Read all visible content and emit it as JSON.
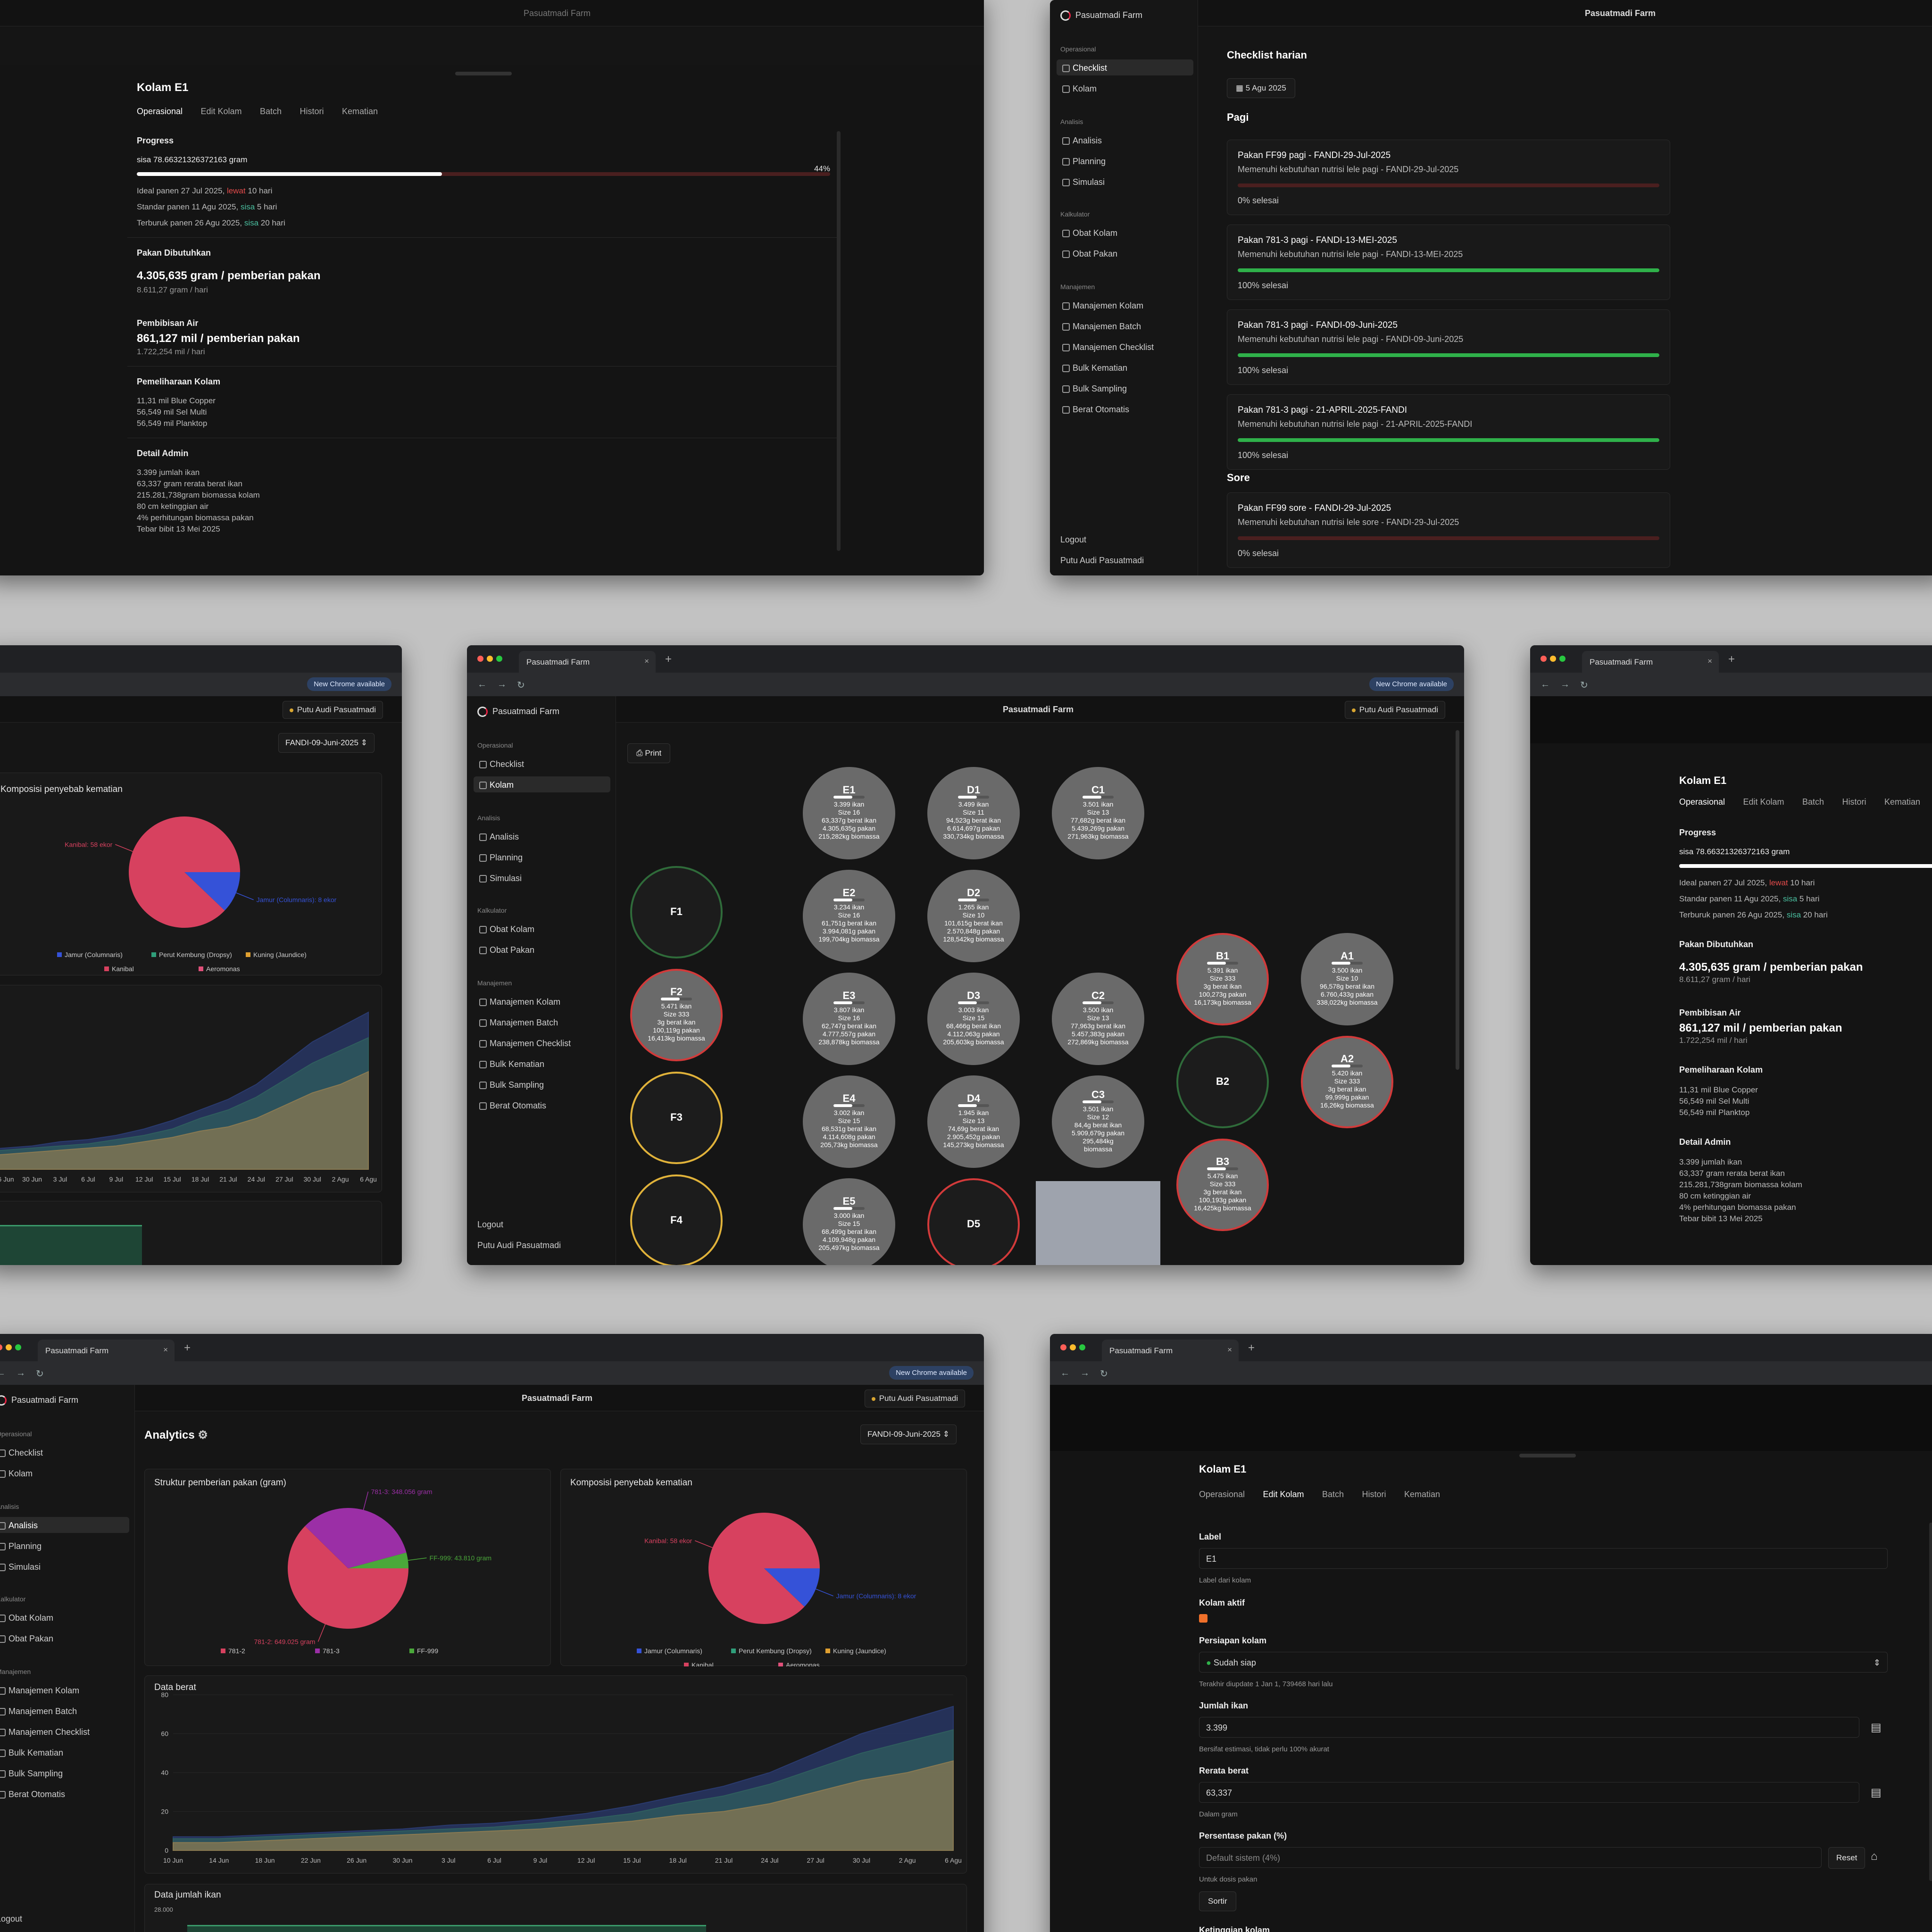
{
  "app": {
    "name": "Pasuatmadi Farm",
    "tab_title": "Pasuatmadi Farm",
    "user": "Putu Audi Pasuatmadi",
    "chrome_available": "New Chrome available"
  },
  "sidebar": {
    "groups": {
      "operasional": "Operasional",
      "analisis": "Analisis",
      "kalkulator": "Kalkulator",
      "manajemen": "Manajemen"
    },
    "items": {
      "checklist": "Checklist",
      "kolam": "Kolam",
      "analisis": "Analisis",
      "planning": "Planning",
      "simulasi": "Simulasi",
      "obat_kolam": "Obat Kolam",
      "obat_pakan": "Obat Pakan",
      "m_kolam": "Manajemen Kolam",
      "m_batch": "Manajemen Batch",
      "m_checklist": "Manajemen Checklist",
      "bulk_kematian": "Bulk Kematian",
      "bulk_sampling": "Bulk Sampling",
      "berat_otomatis": "Berat Otomatis"
    },
    "logout": "Logout",
    "user": "Putu Audi Pasuatmadi"
  },
  "pond_detail": {
    "title": "Kolam E1",
    "tabs": [
      "Operasional",
      "Edit Kolam",
      "Batch",
      "Histori",
      "Kematian"
    ],
    "progress": {
      "title": "Progress",
      "sisa": "sisa 78.66321326372163 gram",
      "percent": "44%",
      "value": 0.44,
      "ideal": "Ideal panen 27 Jul 2025,",
      "ideal_flag": "lewat",
      "ideal_days": "10 hari",
      "standar": "Standar panen 11 Agu 2025,",
      "standar_flag": "sisa",
      "standar_days": "5 hari",
      "terburuk": "Terburuk panen 26 Agu 2025,",
      "terburuk_flag": "sisa",
      "terburuk_days": "20 hari"
    },
    "pakan": {
      "title": "Pakan Dibutuhkan",
      "main": "4.305,635 gram / pemberian pakan",
      "sub": "8.611,27 gram / hari"
    },
    "air": {
      "title": "Pembibisan Air",
      "main": "861,127 mil / pemberian pakan",
      "sub": "1.722,254 mil / hari"
    },
    "pemeliharaan": {
      "title": "Pemeliharaan Kolam",
      "lines": [
        "11,31 mil Blue Copper",
        "56,549 mil Sel Multi",
        "56,549 mil Planktop"
      ]
    },
    "admin": {
      "title": "Detail Admin",
      "lines": [
        "3.399 jumlah ikan",
        "63,337 gram rerata berat ikan",
        "215.281,738gram biomassa kolam",
        "80 cm ketinggian air",
        "4% perhitungan biomassa pakan",
        "Tebar bibit 13 Mei 2025"
      ]
    }
  },
  "checklist": {
    "title": "Checklist harian",
    "date": "5 Agu 2025",
    "pagi": "Pagi",
    "sore": "Sore",
    "items": [
      {
        "title": "Pakan FF99 pagi - FANDI-29-Jul-2025",
        "desc": "Memenuhi kebutuhan nutrisi lele pagi - FANDI-29-Jul-2025",
        "status": "0% selesai",
        "value": 0
      },
      {
        "title": "Pakan 781-3 pagi - FANDI-13-MEI-2025",
        "desc": "Memenuhi kebutuhan nutrisi lele pagi - FANDI-13-MEI-2025",
        "status": "100% selesai",
        "value": 1
      },
      {
        "title": "Pakan 781-3 pagi - FANDI-09-Juni-2025",
        "desc": "Memenuhi kebutuhan nutrisi lele pagi - FANDI-09-Juni-2025",
        "status": "100% selesai",
        "value": 1
      },
      {
        "title": "Pakan 781-3 pagi - 21-APRIL-2025-FANDI",
        "desc": "Memenuhi kebutuhan nutrisi lele pagi - 21-APRIL-2025-FANDI",
        "status": "100% selesai",
        "value": 1
      }
    ],
    "sore_items": [
      {
        "title": "Pakan FF99 sore - FANDI-29-Jul-2025",
        "desc": "Memenuhi kebutuhan nutrisi lele sore - FANDI-29-Jul-2025",
        "status": "0% selesai",
        "value": 0
      }
    ]
  },
  "map": {
    "print": "Print",
    "ponds": [
      {
        "name": "E1",
        "lines": [
          "3.399 ikan",
          "Size 16",
          "63,337g berat ikan",
          "4.305,635g pakan",
          "215,282kg biomassa"
        ]
      },
      {
        "name": "D1",
        "lines": [
          "3.499 ikan",
          "Size 11",
          "94,523g berat ikan",
          "6.614,697g pakan",
          "330,734kg biomassa"
        ]
      },
      {
        "name": "C1",
        "lines": [
          "3.501 ikan",
          "Size 13",
          "77,682g berat ikan",
          "5.439,269g pakan",
          "271,963kg biomassa"
        ]
      },
      {
        "name": "F1",
        "lines": []
      },
      {
        "name": "E2",
        "lines": [
          "3.234 ikan",
          "Size 16",
          "61,751g berat ikan",
          "3.994,081g pakan",
          "199,704kg biomassa"
        ]
      },
      {
        "name": "D2",
        "lines": [
          "1.265 ikan",
          "Size 10",
          "101,615g berat ikan",
          "2.570,848g pakan",
          "128,542kg biomassa"
        ]
      },
      {
        "name": "B1",
        "lines": [
          "5.391 ikan",
          "Size 333",
          "3g berat ikan",
          "100,273g pakan",
          "16,173kg biomassa"
        ]
      },
      {
        "name": "A1",
        "lines": [
          "3.500 ikan",
          "Size 10",
          "96,578g berat ikan",
          "6.760,433g pakan",
          "338,022kg biomassa"
        ]
      },
      {
        "name": "F2",
        "lines": [
          "5.471 ikan",
          "Size 333",
          "3g berat ikan",
          "100,119g pakan",
          "16,413kg biomassa"
        ]
      },
      {
        "name": "E3",
        "lines": [
          "3.807 ikan",
          "Size 16",
          "62,747g berat ikan",
          "4.777,557g pakan",
          "238,878kg biomassa"
        ]
      },
      {
        "name": "D3",
        "lines": [
          "3.003 ikan",
          "Size 15",
          "68,466g berat ikan",
          "4.112,063g pakan",
          "205,603kg biomassa"
        ]
      },
      {
        "name": "C2",
        "lines": [
          "3.500 ikan",
          "Size 13",
          "77,963g berat ikan",
          "5.457,383g pakan",
          "272,869kg biomassa"
        ]
      },
      {
        "name": "B2",
        "lines": []
      },
      {
        "name": "A2",
        "lines": [
          "5.420 ikan",
          "Size 333",
          "3g berat ikan",
          "99,999g pakan",
          "16,26kg biomassa"
        ]
      },
      {
        "name": "F3",
        "lines": []
      },
      {
        "name": "E4",
        "lines": [
          "3.002 ikan",
          "Size 15",
          "68,531g berat ikan",
          "4.114,608g pakan",
          "205,73kg biomassa"
        ]
      },
      {
        "name": "D4",
        "lines": [
          "1.945 ikan",
          "Size 13",
          "74,69g berat ikan",
          "2.905,452g pakan",
          "145,273kg biomassa"
        ]
      },
      {
        "name": "C3",
        "lines": [
          "3.501 ikan",
          "Size 12",
          "84,4g berat ikan",
          "5.909,679g pakan",
          "295,484kg",
          "biomassa"
        ]
      },
      {
        "name": "B3",
        "lines": [
          "5.475 ikan",
          "Size 333",
          "3g berat ikan",
          "100,193g pakan",
          "16,425kg biomassa"
        ]
      },
      {
        "name": "F4",
        "lines": []
      },
      {
        "name": "E5",
        "lines": [
          "3.000 ikan",
          "Size 15",
          "68,499g berat ikan",
          "4.109,948g pakan",
          "205,497kg biomassa"
        ]
      },
      {
        "name": "D5",
        "lines": []
      }
    ]
  },
  "analytics": {
    "title": "Analytics",
    "batch": "FANDI-09-Juni-2025",
    "feed_title": "Struktur pemberian pakan (gram)",
    "death_title": "Komposisi penyebab kematian",
    "weight_title": "Data berat",
    "count_title": "Data jumlah ikan",
    "count_tick": "28.000"
  },
  "edit": {
    "label": "Label",
    "label_value": "E1",
    "label_hint": "Label dari kolam",
    "aktif": "Kolam aktif",
    "persiapan": "Persiapan kolam",
    "persiapan_value": "Sudah siap",
    "persiapan_hint": "Terakhir diupdate 1 Jan 1, 739468 hari lalu",
    "jumlah": "Jumlah ikan",
    "jumlah_value": "3.399",
    "jumlah_hint": "Bersifat estimasi, tidak perlu 100% akurat",
    "rerata": "Rerata berat",
    "rerata_value": "63,337",
    "rerata_hint": "Dalam gram",
    "persen": "Persentase pakan (%)",
    "persen_placeholder": "Default sistem (4%)",
    "persen_hint": "Untuk dosis pakan",
    "reset": "Reset",
    "sortir": "Sortir",
    "ketinggian": "Ketinggian kolam"
  },
  "chart_data": [
    {
      "type": "pie",
      "title": "Struktur pemberian pakan (gram)",
      "slices": [
        {
          "name": "781-2",
          "label": "781-2: 649.025 gram",
          "value": 649.025,
          "color": "#d7415f"
        },
        {
          "name": "781-3",
          "label": "781-3: 348.056 gram",
          "value": 348.056,
          "color": "#9b2fa6"
        },
        {
          "name": "FF-999",
          "label": "FF-999: 43.810 gram",
          "value": 43.81,
          "color": "#4aa83a"
        }
      ]
    },
    {
      "type": "pie",
      "title": "Komposisi penyebab kematian",
      "slices": [
        {
          "name": "Jamur (Columnaris)",
          "label": "Jamur (Columnaris): 8 ekor",
          "value": 8,
          "color": "#3552d8"
        },
        {
          "name": "Perut Kembung (Dropsy)",
          "value": 0,
          "color": "#2f9e7a"
        },
        {
          "name": "Kuning (Jaundice)",
          "value": 0,
          "color": "#e0a030"
        },
        {
          "name": "Kanibal",
          "label": "Kanibal: 58 ekor",
          "value": 58,
          "color": "#d7415f"
        },
        {
          "name": "Aeromonas",
          "value": 0,
          "color": "#e0507a"
        }
      ]
    },
    {
      "type": "area",
      "title": "Data berat",
      "y_ticks": [
        0,
        20,
        40,
        60,
        80
      ],
      "x_ticks": [
        "10 Jun",
        "14 Jun",
        "18 Jun",
        "22 Jun",
        "26 Jun",
        "30 Jun",
        "3 Jul",
        "6 Jul",
        "9 Jul",
        "12 Jul",
        "15 Jul",
        "18 Jul",
        "21 Jul",
        "24 Jul",
        "27 Jul",
        "30 Jul",
        "2 Agu",
        "6 Agu"
      ],
      "ylim": [
        0,
        80
      ],
      "series": [
        {
          "values": [
            4,
            4,
            5,
            6,
            7,
            8,
            9,
            10,
            11,
            13,
            15,
            18,
            20,
            24,
            30,
            36,
            40,
            46
          ],
          "color": "#8a7a52"
        },
        {
          "values": [
            6,
            6,
            7,
            8,
            9,
            10,
            11,
            12,
            14,
            16,
            19,
            24,
            28,
            34,
            42,
            50,
            56,
            62
          ],
          "color": "#2f5e5e"
        },
        {
          "values": [
            7,
            7,
            8,
            9,
            10,
            11,
            13,
            14,
            16,
            19,
            23,
            28,
            33,
            40,
            50,
            60,
            67,
            74
          ],
          "color": "#2a3a6e"
        }
      ]
    }
  ],
  "colors": {
    "accent_red": "#e24a4a",
    "success": "#2fb14a",
    "warn": "#e2b23a"
  }
}
